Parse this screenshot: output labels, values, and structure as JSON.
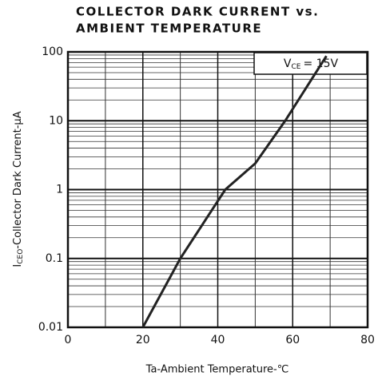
{
  "chart_data": {
    "type": "line",
    "title": [
      "COLLECTOR DARK CURRENT vs.",
      "AMBIENT TEMPERATURE"
    ],
    "xlabel": "Ta-Ambient Temperature-℃",
    "ylabel": {
      "main": "I",
      "sub": "CEO",
      "rest": "-Collector Dark Current-μA"
    },
    "annotation": {
      "main": "V",
      "sub": "CE",
      "rest": "= 15V"
    },
    "xlim": [
      0,
      80
    ],
    "xticks": [
      0,
      20,
      40,
      60,
      80
    ],
    "x_grid_step": 10,
    "ylim": [
      0.01,
      100
    ],
    "yticks": [
      100,
      10,
      1,
      0.1,
      0.01
    ],
    "log_y": true,
    "grid": true,
    "series": [
      {
        "name": "I_CEO",
        "color": "#222222",
        "x": [
          20,
          30,
          42,
          50,
          58,
          69
        ],
        "values": [
          0.01,
          0.1,
          1,
          2.4,
          10,
          87
        ]
      }
    ]
  }
}
